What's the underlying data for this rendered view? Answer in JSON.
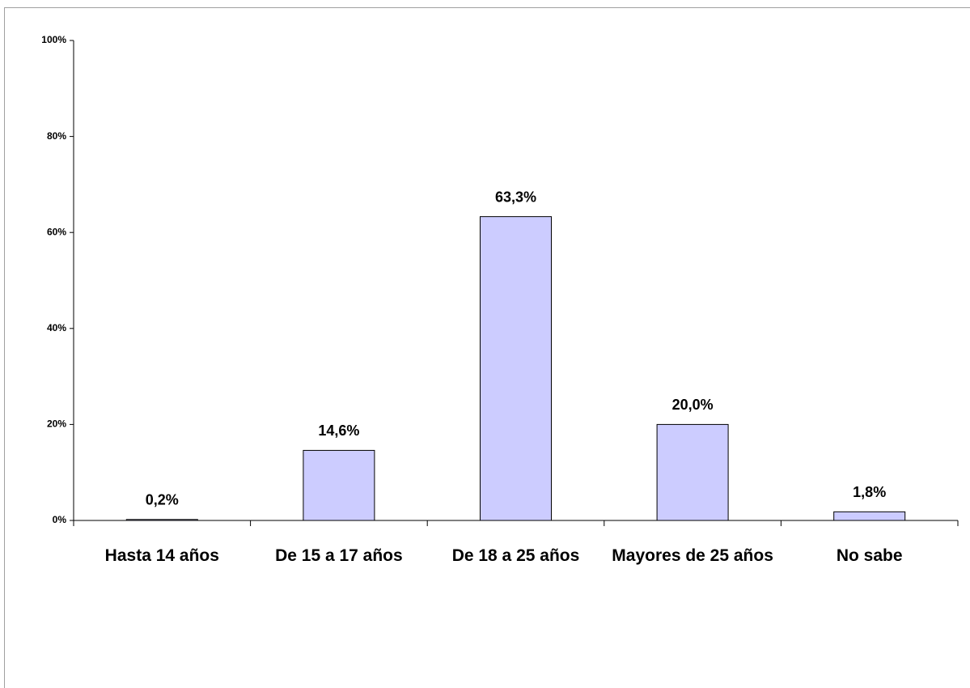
{
  "chart_data": {
    "type": "bar",
    "categories": [
      "Hasta 14 años",
      "De 15 a 17 años",
      "De 18 a 25 años",
      "Mayores de 25 años",
      "No sabe"
    ],
    "values": [
      0.2,
      14.6,
      63.3,
      20.0,
      1.8
    ],
    "value_labels": [
      "0,2%",
      "14,6%",
      "63,3%",
      "20,0%",
      "1,8%"
    ],
    "color": "#ccccff",
    "ylim": [
      0,
      100
    ],
    "yticks": [
      {
        "value": 0,
        "label": "0%"
      },
      {
        "value": 20,
        "label": "20%"
      },
      {
        "value": 40,
        "label": "40%"
      },
      {
        "value": 60,
        "label": "60%"
      },
      {
        "value": 80,
        "label": "80%"
      },
      {
        "value": 100,
        "label": "100%"
      }
    ],
    "grid": false
  }
}
